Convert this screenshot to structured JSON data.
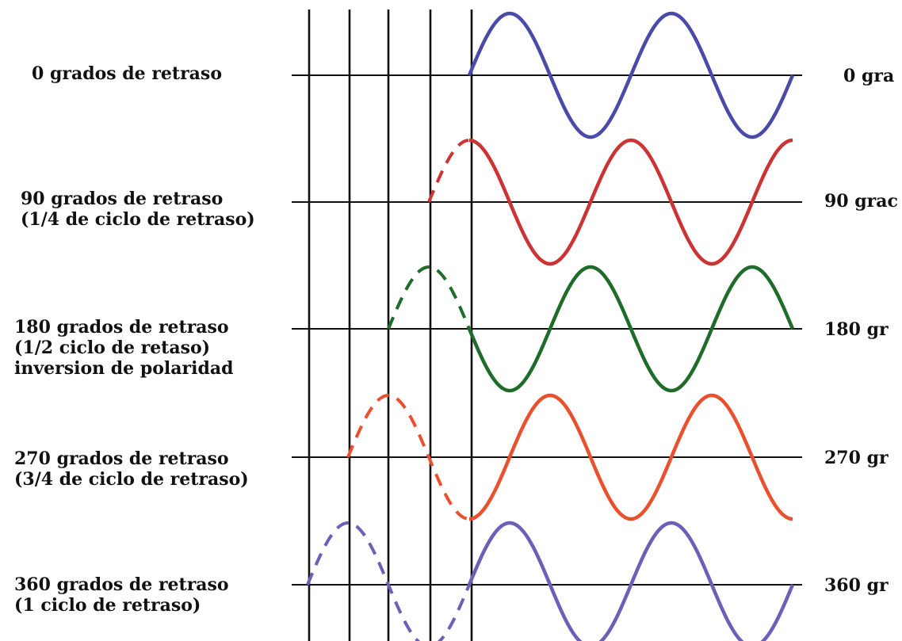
{
  "diagram": {
    "rows": [
      {
        "left_lines": [
          "0 grados de retraso"
        ],
        "right_label": "0 gra",
        "color": "#4a4aa8",
        "delay_degrees": 0
      },
      {
        "left_lines": [
          "90 grados de retraso",
          "(1/4 de ciclo de retraso)"
        ],
        "right_label": "90 grac",
        "color": "#cc3333",
        "delay_degrees": 90
      },
      {
        "left_lines": [
          "180 grados de retraso",
          "(1/2 ciclo de retaso)",
          "inversion de polaridad"
        ],
        "right_label": "180 gr",
        "color": "#1f6b2a",
        "delay_degrees": 180
      },
      {
        "left_lines": [
          "270 grados de retraso",
          "(3/4 de ciclo de retraso)"
        ],
        "right_label": "270 gr",
        "color": "#e8502e",
        "delay_degrees": 270
      },
      {
        "left_lines": [
          "360 grados de retraso",
          "(1 ciclo de retraso)"
        ],
        "right_label": "360 gr",
        "color": "#6b60b8",
        "delay_degrees": 360
      }
    ]
  }
}
